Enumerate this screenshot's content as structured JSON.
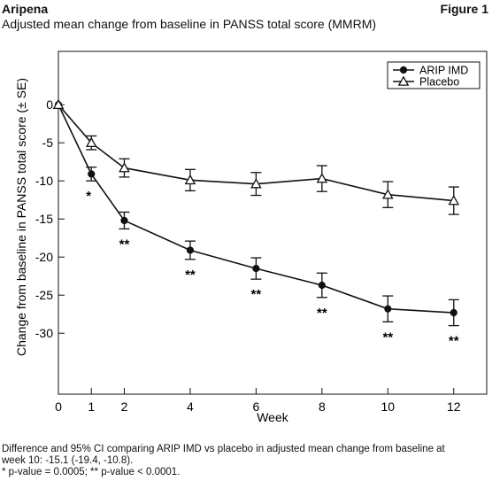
{
  "header": {
    "brand": "Aripena",
    "figure_label": "Figure 1",
    "subtitle": "Adjusted mean change from baseline in PANSS total score (MMRM)"
  },
  "chart_data": {
    "type": "line",
    "title": "",
    "xlabel": "Week",
    "ylabel": "Change from baseline in PANSS total score (± SE)",
    "x": [
      0,
      1,
      2,
      4,
      6,
      8,
      10,
      12
    ],
    "xticks": [
      0,
      1,
      2,
      4,
      6,
      8,
      10,
      12
    ],
    "yticks": [
      0,
      -5,
      -10,
      -15,
      -20,
      -25,
      -30
    ],
    "xlim": [
      0,
      13
    ],
    "ylim": [
      -38,
      7
    ],
    "grid": false,
    "legend_position": "top-right",
    "series": [
      {
        "name": "ARIP IMD",
        "marker": "filled-circle",
        "values": [
          0,
          -9.1,
          -15.2,
          -19.1,
          -21.5,
          -23.7,
          -26.8,
          -27.3
        ],
        "se": [
          0,
          0.9,
          1.1,
          1.2,
          1.4,
          1.6,
          1.7,
          1.7
        ],
        "significance": [
          "",
          "*",
          "**",
          "**",
          "**",
          "**",
          "**",
          "**"
        ]
      },
      {
        "name": "Placebo",
        "marker": "open-triangle",
        "values": [
          0,
          -5.0,
          -8.3,
          -9.9,
          -10.4,
          -9.7,
          -11.8,
          -12.6
        ],
        "se": [
          0,
          0.9,
          1.2,
          1.4,
          1.5,
          1.7,
          1.7,
          1.8
        ],
        "significance": [
          "",
          "",
          "",
          "",
          "",
          "",
          "",
          ""
        ]
      }
    ]
  },
  "footnotes": {
    "line1": "Difference and 95% CI comparing ARIP IMD vs placebo in adjusted mean change from baseline at",
    "line2": "week 10: -15.1 (-19.4, -10.8).",
    "line3": "* p-value = 0.0005; ** p-value < 0.0001."
  }
}
